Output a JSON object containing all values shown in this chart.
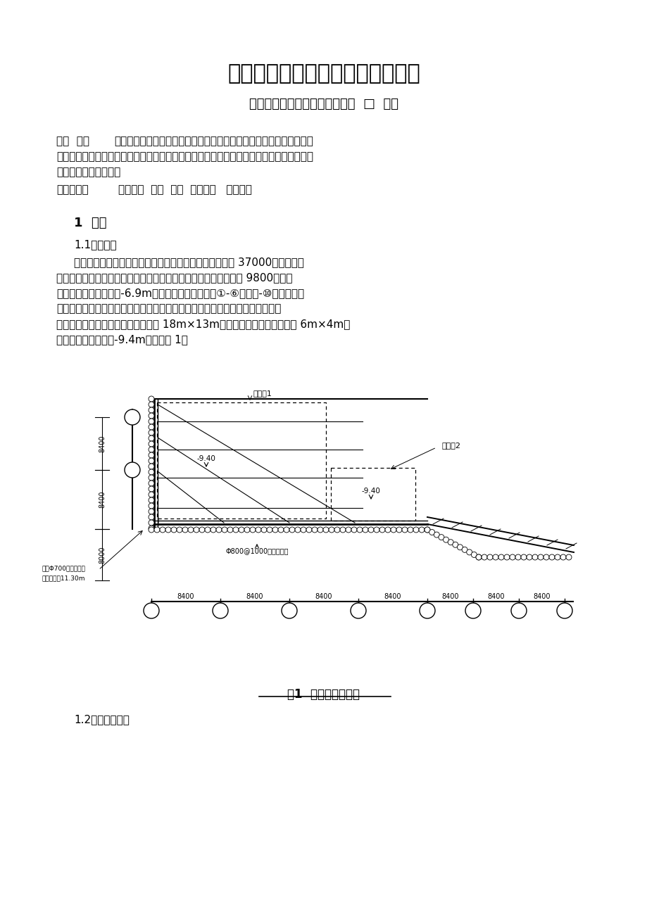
{
  "title": "某工程基坑支护冠梁断裂处理实例",
  "subtitle": "南京工大建设监理征询有限企业  □  杜明",
  "abstract_label": "【摘  要】",
  "keyword_label": "【关键词】",
  "keyword_text": "基坑支护  冠梁  断裂  事故原因   加固处理",
  "section1": "1  概述",
  "section11": "1.1工程概况",
  "fig_caption": "图1  支护局部平面图",
  "section12": "1.2支护构造方案",
  "bg_color": "#ffffff",
  "text_color": "#000000"
}
